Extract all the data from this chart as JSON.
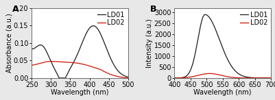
{
  "panel_A": {
    "label": "A",
    "xlabel": "Wavelength (nm)",
    "ylabel": "Absorbance (a.u.)",
    "xlim": [
      250,
      500
    ],
    "ylim": [
      0,
      0.2
    ],
    "yticks": [
      0.0,
      0.05,
      0.1,
      0.15,
      0.2
    ],
    "xticks": [
      250,
      300,
      350,
      400,
      450,
      500
    ],
    "LD01_color": "#1a1a1a",
    "LD02_color": "#cc1100"
  },
  "panel_B": {
    "label": "B",
    "xlabel": "Wavelength (nm)",
    "ylabel": "Intensity (a.u.)",
    "xlim": [
      400,
      700
    ],
    "ylim": [
      0,
      3200
    ],
    "yticks": [
      0,
      500,
      1000,
      1500,
      2000,
      2500,
      3000
    ],
    "xticks": [
      400,
      450,
      500,
      550,
      600,
      650,
      700
    ],
    "LD01_color": "#1a1a1a",
    "LD02_color": "#cc1100"
  },
  "background_color": "#ffffff",
  "outer_bg": "#e8e8e8",
  "font_size": 7
}
